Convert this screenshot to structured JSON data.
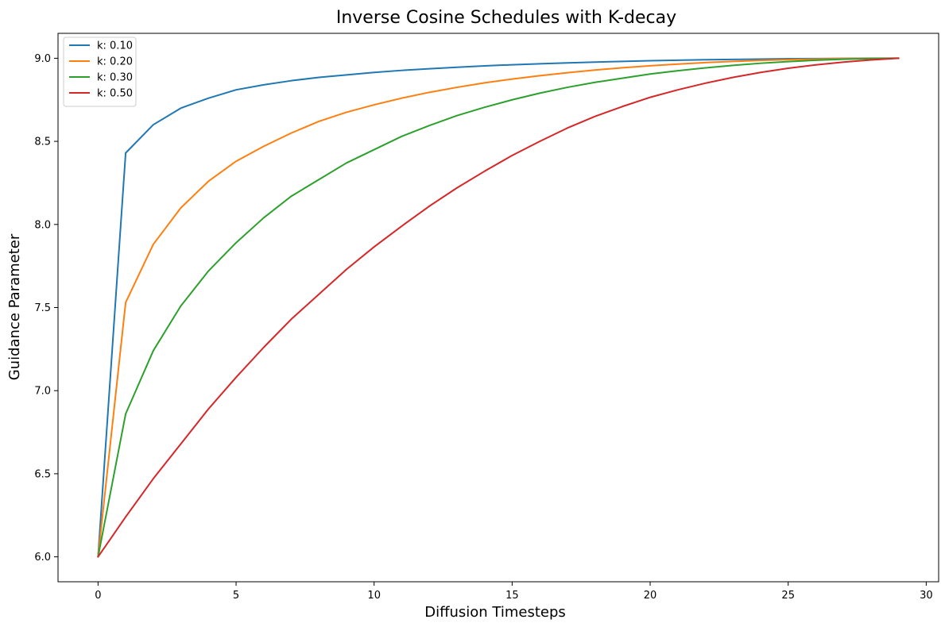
{
  "chart_data": {
    "type": "line",
    "title": "Inverse Cosine Schedules with K-decay",
    "xlabel": "Diffusion Timesteps",
    "ylabel": "Guidance Parameter",
    "xlim": [
      -1.45,
      30.45
    ],
    "ylim": [
      5.85,
      9.15
    ],
    "xticks": [
      0,
      5,
      10,
      15,
      20,
      25,
      30
    ],
    "yticks": [
      6.0,
      6.5,
      7.0,
      7.5,
      8.0,
      8.5,
      9.0
    ],
    "xtick_labels": [
      "0",
      "5",
      "10",
      "15",
      "20",
      "25",
      "30"
    ],
    "ytick_labels": [
      "6.0",
      "6.5",
      "7.0",
      "7.5",
      "8.0",
      "8.5",
      "9.0"
    ],
    "grid": false,
    "legend_position": "top-left",
    "x": [
      0,
      1,
      2,
      3,
      4,
      5,
      6,
      7,
      8,
      9,
      10,
      11,
      12,
      13,
      14,
      15,
      16,
      17,
      18,
      19,
      20,
      21,
      22,
      23,
      24,
      25,
      26,
      27,
      28,
      29
    ],
    "series": [
      {
        "name": "k: 0.10",
        "color": "#1f77b4",
        "values": [
          6.0,
          8.43,
          8.6,
          8.7,
          8.76,
          8.81,
          8.84,
          8.865,
          8.885,
          8.9,
          8.915,
          8.927,
          8.937,
          8.946,
          8.954,
          8.961,
          8.967,
          8.972,
          8.977,
          8.981,
          8.985,
          8.988,
          8.991,
          8.993,
          8.995,
          8.997,
          8.998,
          8.999,
          9.0,
          9.0
        ]
      },
      {
        "name": "k: 0.20",
        "color": "#ff7f0e",
        "values": [
          6.0,
          7.53,
          7.88,
          8.1,
          8.26,
          8.38,
          8.47,
          8.55,
          8.62,
          8.675,
          8.72,
          8.76,
          8.795,
          8.825,
          8.852,
          8.875,
          8.895,
          8.913,
          8.929,
          8.943,
          8.955,
          8.965,
          8.974,
          8.981,
          8.987,
          8.992,
          8.995,
          8.998,
          8.999,
          9.0
        ]
      },
      {
        "name": "k: 0.30",
        "color": "#2ca02c",
        "values": [
          6.0,
          6.86,
          7.24,
          7.51,
          7.72,
          7.89,
          8.04,
          8.17,
          8.27,
          8.37,
          8.45,
          8.53,
          8.595,
          8.655,
          8.705,
          8.75,
          8.79,
          8.825,
          8.855,
          8.88,
          8.905,
          8.925,
          8.942,
          8.957,
          8.97,
          8.98,
          8.988,
          8.994,
          8.998,
          9.0
        ]
      },
      {
        "name": "k: 0.50",
        "color": "#d62728",
        "values": [
          6.0,
          6.24,
          6.47,
          6.68,
          6.89,
          7.08,
          7.26,
          7.43,
          7.58,
          7.73,
          7.865,
          7.99,
          8.11,
          8.22,
          8.32,
          8.415,
          8.5,
          8.58,
          8.65,
          8.71,
          8.765,
          8.81,
          8.85,
          8.885,
          8.915,
          8.94,
          8.96,
          8.977,
          8.99,
          9.0
        ]
      }
    ]
  }
}
